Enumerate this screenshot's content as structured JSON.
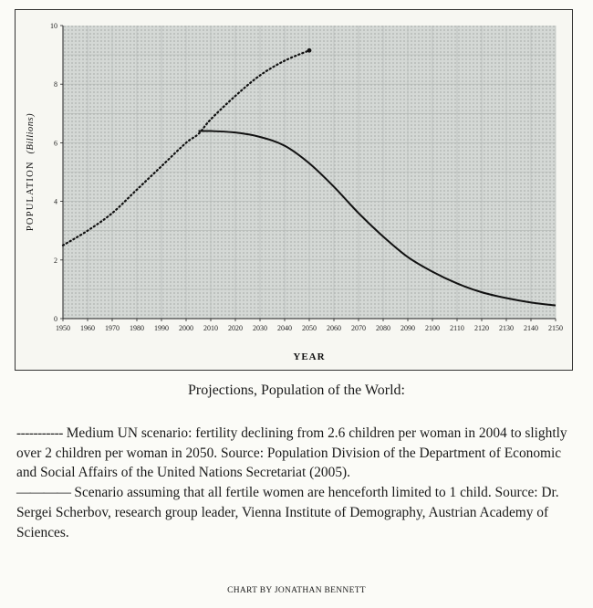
{
  "chart_data": {
    "type": "line",
    "title": "",
    "xlabel": "YEAR",
    "ylabel": "POPULATION",
    "ylabel_unit": "(Billions)",
    "xlim": [
      1950,
      2150
    ],
    "ylim": [
      0,
      10
    ],
    "x_ticks": [
      1950,
      1960,
      1970,
      1980,
      1990,
      2000,
      2010,
      2020,
      2030,
      2040,
      2050,
      2060,
      2070,
      2080,
      2090,
      2100,
      2110,
      2120,
      2130,
      2140,
      2150
    ],
    "y_ticks": [
      0,
      2,
      4,
      6,
      8,
      10
    ],
    "grid": true,
    "series": [
      {
        "style": "dotted",
        "x": [
          1950,
          1960,
          1970,
          1980,
          1990,
          2000,
          2005,
          2010,
          2020,
          2030,
          2040,
          2050
        ],
        "y": [
          2.5,
          3.0,
          3.6,
          4.4,
          5.2,
          6.0,
          6.3,
          6.8,
          7.6,
          8.3,
          8.8,
          9.15
        ]
      },
      {
        "style": "solid",
        "x": [
          2005,
          2010,
          2020,
          2030,
          2040,
          2050,
          2060,
          2070,
          2080,
          2090,
          2100,
          2110,
          2120,
          2130,
          2140,
          2150
        ],
        "y": [
          6.4,
          6.4,
          6.35,
          6.2,
          5.9,
          5.3,
          4.5,
          3.6,
          2.8,
          2.1,
          1.6,
          1.2,
          0.9,
          0.7,
          0.55,
          0.45
        ]
      }
    ]
  },
  "caption": "Projections, Population of the World:",
  "notes": {
    "medium": {
      "marker": "-----------",
      "text": " Medium UN scenario: fertility declining from 2.6 children per woman in 2004 to slightly over 2 children per woman in 2050. Source: Population Division of the Department of Economic and Social Affairs of the United Nations Secretariat (2005)."
    },
    "one_child": {
      "marker": "————",
      "text": " Scenario assuming that all fertile women are henceforth limited to 1 child. Source: Dr. Sergei Scherbov, research group leader, Vienna Institute of Demography, Austrian Academy of Sciences."
    }
  },
  "credit": "CHART BY JONATHAN BENNETT",
  "colors": {
    "grid_bg": "#cfd4d1",
    "grid_line": "#b3b8b5",
    "line": "#111111"
  }
}
